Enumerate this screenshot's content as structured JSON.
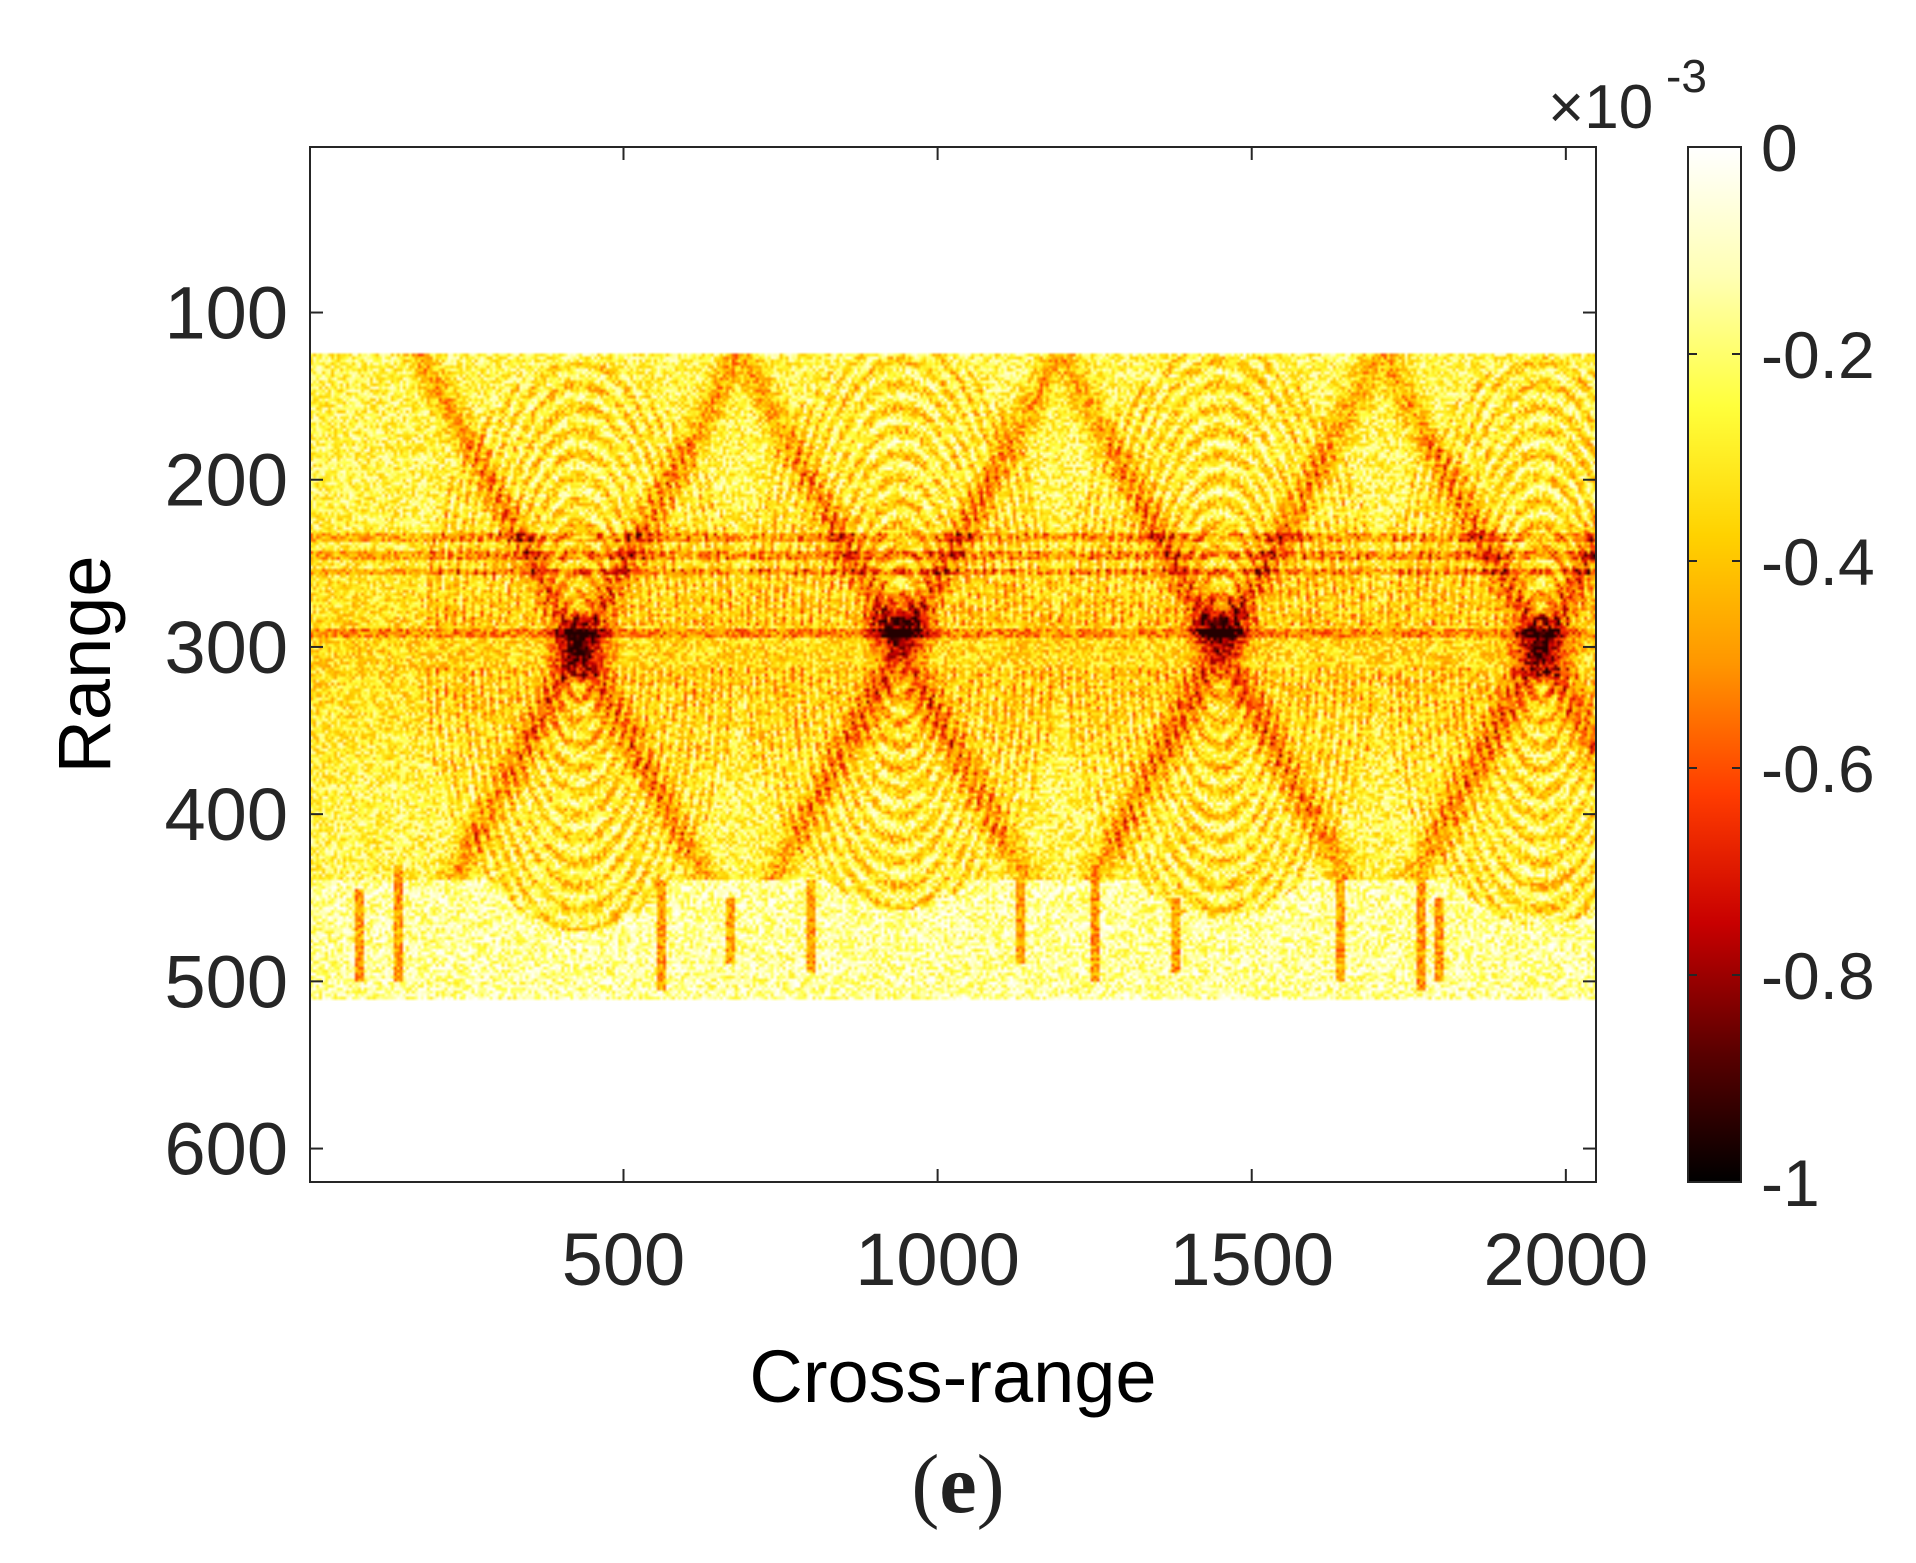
{
  "figure": {
    "panel_label_open": "(",
    "panel_label_letter": "e",
    "panel_label_close": ")"
  },
  "chart_data": {
    "type": "heatmap",
    "title": "",
    "xlabel": "Cross-range",
    "ylabel": "Range",
    "xlim": [
      1,
      2048
    ],
    "ylim": [
      1,
      620
    ],
    "y_reversed": true,
    "xticks": [
      500,
      1000,
      1500,
      2000
    ],
    "xtick_labels": [
      "500",
      "1000",
      "1500",
      "2000"
    ],
    "yticks": [
      100,
      200,
      300,
      400,
      500,
      600
    ],
    "ytick_labels": [
      "100",
      "200",
      "300",
      "400",
      "500",
      "600"
    ],
    "colormap": "hot",
    "colormap_stops": [
      "#000000",
      "#5a0000",
      "#c80000",
      "#ff3c00",
      "#ff9600",
      "#ffd200",
      "#ffff3c",
      "#ffffb4",
      "#ffffff"
    ],
    "colorbar": {
      "range": [
        -1,
        0
      ],
      "ticks": [
        0,
        -0.2,
        -0.4,
        -0.6,
        -0.8,
        -1
      ],
      "tick_labels": [
        "0",
        "-0.2",
        "-0.4",
        "-0.6",
        "-0.8",
        "-1"
      ],
      "exponent_label_base": "×10",
      "exponent_label_power": "-3"
    },
    "features": {
      "band_range": [
        125,
        510
      ],
      "crossing_points": [
        {
          "x": 430,
          "y": 300
        },
        {
          "x": 940,
          "y": 290
        },
        {
          "x": 1450,
          "y": 290
        },
        {
          "x": 1960,
          "y": 300
        }
      ],
      "lobes": [
        {
          "x": 430,
          "y_top": 130,
          "y_bottom": 470
        },
        {
          "x": 940,
          "y_top": 117,
          "y_bottom": 457
        },
        {
          "x": 1450,
          "y_top": 120,
          "y_bottom": 463
        },
        {
          "x": 1960,
          "y_top": 127,
          "y_bottom": 467
        }
      ],
      "horizontal_streaks": [
        235,
        245,
        255,
        292
      ],
      "vertical_streaks": [
        {
          "x": 80,
          "y0": 445,
          "y1": 500
        },
        {
          "x": 140,
          "y0": 430,
          "y1": 500
        },
        {
          "x": 560,
          "y0": 440,
          "y1": 505
        },
        {
          "x": 670,
          "y0": 450,
          "y1": 490
        },
        {
          "x": 800,
          "y0": 440,
          "y1": 495
        },
        {
          "x": 1130,
          "y0": 440,
          "y1": 490
        },
        {
          "x": 1250,
          "y0": 430,
          "y1": 500
        },
        {
          "x": 1380,
          "y0": 450,
          "y1": 495
        },
        {
          "x": 1640,
          "y0": 440,
          "y1": 500
        },
        {
          "x": 1770,
          "y0": 440,
          "y1": 505
        },
        {
          "x": 1800,
          "y0": 450,
          "y1": 500
        }
      ]
    }
  }
}
